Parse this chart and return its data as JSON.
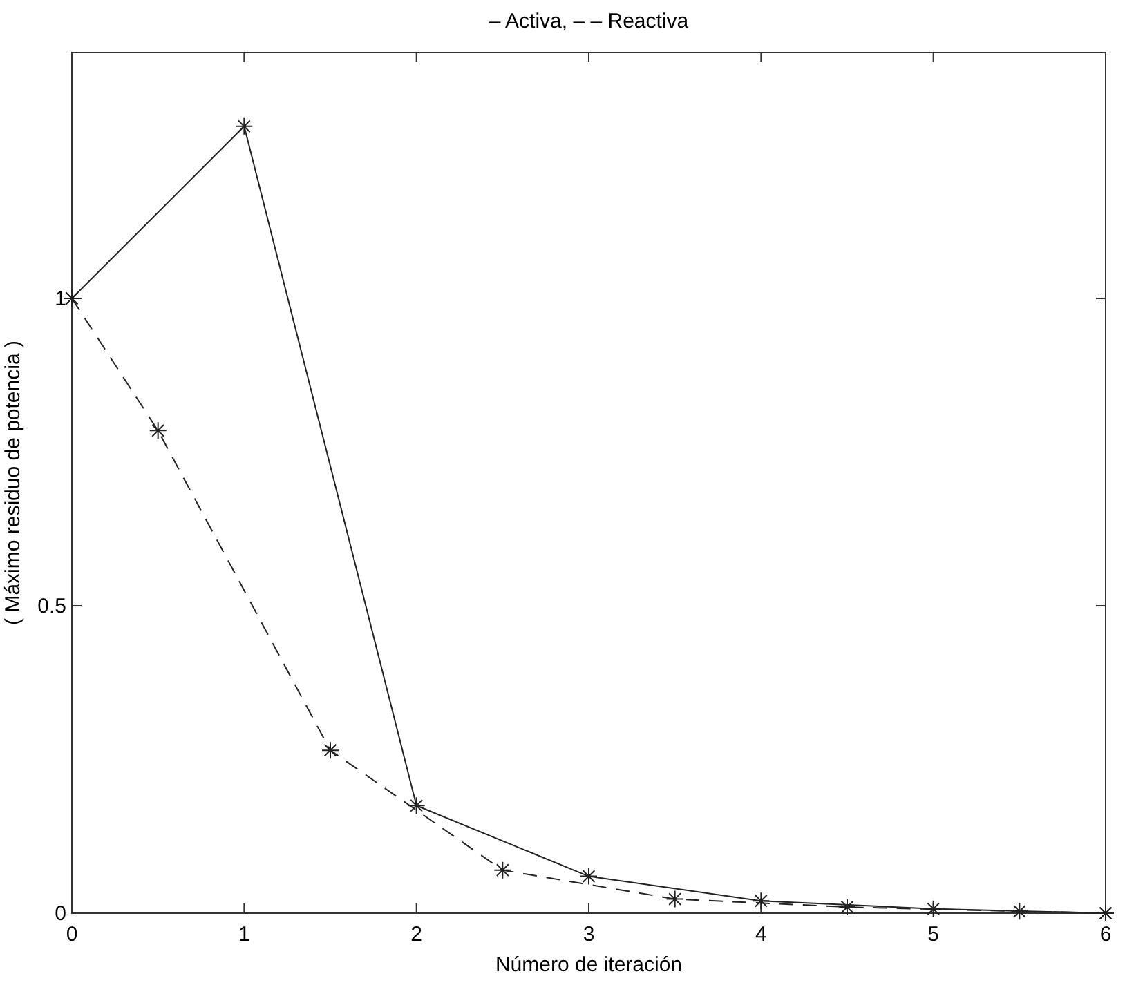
{
  "chart_data": {
    "type": "line",
    "title": "– Activa, – – Reactiva",
    "xlabel": "Número de iteración",
    "ylabel": "( Máximo residuo de potencia )",
    "xlim": [
      0,
      6
    ],
    "xticks": [
      0,
      1,
      2,
      3,
      4,
      5,
      6
    ],
    "ylim": [
      0,
      1.4
    ],
    "yticks": [
      0,
      0.5,
      1
    ],
    "grid": false,
    "marker": "cross",
    "series": [
      {
        "color": "#222222",
        "line_style": "solid",
        "x": [
          0,
          1,
          2,
          3,
          4,
          5,
          6
        ],
        "values": [
          1,
          1.28,
          0.175,
          0.06,
          0.02,
          0.007,
          0
        ]
      },
      {
        "color": "#222222",
        "line_style": "dashed",
        "x": [
          0,
          0.5,
          1.5,
          2.5,
          3.5,
          4.5,
          5.5,
          6
        ],
        "values": [
          1,
          0.785,
          0.265,
          0.07,
          0.023,
          0.01,
          0.003,
          0
        ]
      }
    ]
  }
}
